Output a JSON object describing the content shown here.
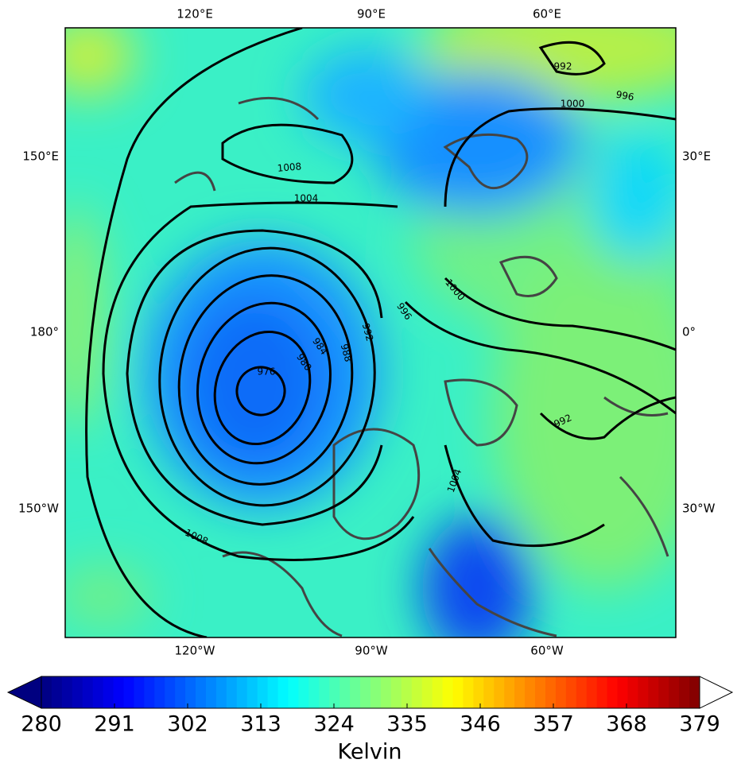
{
  "map": {
    "top_labels": [
      "120°E",
      "90°E",
      "60°E"
    ],
    "bottom_labels": [
      "120°W",
      "90°W",
      "60°W"
    ],
    "left_labels": [
      "150°E",
      "180°",
      "150°W"
    ],
    "right_labels": [
      "30°E",
      "0°",
      "30°W"
    ],
    "contour_labels": [
      976,
      980,
      984,
      988,
      992,
      996,
      1000,
      1004,
      1008,
      1008,
      1004,
      992,
      1000,
      996,
      992
    ]
  },
  "colorbar": {
    "label": "Kelvin",
    "range": [
      280,
      379
    ],
    "ticks": [
      280,
      291,
      302,
      313,
      324,
      335,
      346,
      357,
      368,
      379
    ]
  }
}
